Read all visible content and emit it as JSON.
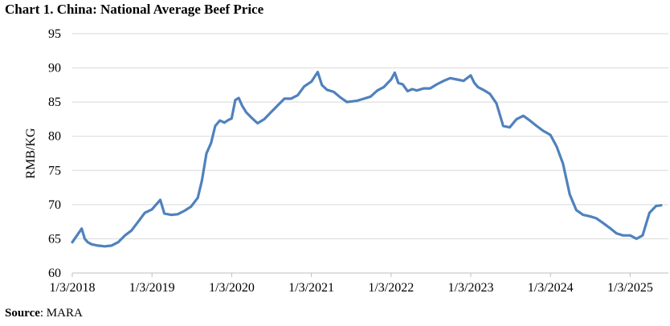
{
  "chart_data": {
    "type": "line",
    "title": "Chart 1. China: National Average Beef Price",
    "xlabel": "",
    "ylabel": "RMB/KG",
    "ylim": [
      60,
      95
    ],
    "y_ticks": [
      60,
      65,
      70,
      75,
      80,
      85,
      90,
      95
    ],
    "x_tick_labels": [
      "1/3/2018",
      "1/3/2019",
      "1/3/2020",
      "1/3/2021",
      "1/3/2022",
      "1/3/2023",
      "1/3/2024",
      "1/3/2025"
    ],
    "grid": "horizontal",
    "legend": "none",
    "line_color": "#4f81bd",
    "series": [
      {
        "x": [
          "2018-01-03",
          "2018-02-15",
          "2018-03-01",
          "2018-03-15",
          "2018-04-01",
          "2018-05-01",
          "2018-06-01",
          "2018-07-01",
          "2018-08-01",
          "2018-09-01",
          "2018-10-01",
          "2018-11-01",
          "2018-12-01",
          "2019-01-03",
          "2019-02-10",
          "2019-03-01",
          "2019-04-01",
          "2019-05-01",
          "2019-06-01",
          "2019-07-01",
          "2019-08-01",
          "2019-08-20",
          "2019-09-10",
          "2019-10-01",
          "2019-10-20",
          "2019-11-10",
          "2019-12-01",
          "2019-12-20",
          "2020-01-03",
          "2020-01-20",
          "2020-02-05",
          "2020-02-20",
          "2020-03-10",
          "2020-04-01",
          "2020-05-01",
          "2020-06-01",
          "2020-07-01",
          "2020-08-01",
          "2020-09-01",
          "2020-10-01",
          "2020-11-01",
          "2020-12-01",
          "2021-01-03",
          "2021-02-01",
          "2021-02-20",
          "2021-03-15",
          "2021-04-15",
          "2021-05-15",
          "2021-06-15",
          "2021-08-01",
          "2021-09-01",
          "2021-10-01",
          "2021-11-01",
          "2021-12-01",
          "2022-01-03",
          "2022-01-20",
          "2022-02-05",
          "2022-02-25",
          "2022-03-20",
          "2022-04-10",
          "2022-05-01",
          "2022-06-01",
          "2022-07-01",
          "2022-08-01",
          "2022-09-01",
          "2022-10-01",
          "2022-11-01",
          "2022-12-01",
          "2023-01-03",
          "2023-01-20",
          "2023-02-05",
          "2023-03-01",
          "2023-04-01",
          "2023-05-01",
          "2023-06-01",
          "2023-07-01",
          "2023-08-01",
          "2023-09-01",
          "2023-10-01",
          "2023-11-01",
          "2023-12-01",
          "2024-01-03",
          "2024-02-01",
          "2024-03-01",
          "2024-04-01",
          "2024-05-01",
          "2024-06-01",
          "2024-07-01",
          "2024-08-01",
          "2024-09-01",
          "2024-10-01",
          "2024-11-01",
          "2024-12-01",
          "2025-01-03",
          "2025-02-01",
          "2025-03-01",
          "2025-04-01",
          "2025-05-01",
          "2025-05-25"
        ],
        "values": [
          64.5,
          66.5,
          65.0,
          64.5,
          64.2,
          64.0,
          63.9,
          64.0,
          64.5,
          65.5,
          66.2,
          67.5,
          68.8,
          69.3,
          70.7,
          68.7,
          68.5,
          68.6,
          69.1,
          69.7,
          71.0,
          73.5,
          77.5,
          79.0,
          81.5,
          82.3,
          82.0,
          82.4,
          82.6,
          85.3,
          85.6,
          84.5,
          83.5,
          82.8,
          81.9,
          82.5,
          83.5,
          84.5,
          85.5,
          85.5,
          86.0,
          87.3,
          88.0,
          89.4,
          87.5,
          86.8,
          86.5,
          85.7,
          85.0,
          85.2,
          85.5,
          85.8,
          86.7,
          87.2,
          88.3,
          89.3,
          87.8,
          87.6,
          86.6,
          86.9,
          86.7,
          87.0,
          87.0,
          87.6,
          88.1,
          88.5,
          88.3,
          88.1,
          88.9,
          87.8,
          87.2,
          86.8,
          86.2,
          84.8,
          81.5,
          81.3,
          82.5,
          83.0,
          82.3,
          81.5,
          80.8,
          80.2,
          78.5,
          76.0,
          71.5,
          69.2,
          68.5,
          68.3,
          68.0,
          67.3,
          66.6,
          65.8,
          65.5,
          65.5,
          65.0,
          65.5,
          68.8,
          69.8,
          69.9
        ]
      }
    ]
  },
  "source": {
    "label": "Source",
    "text": ": MARA"
  }
}
